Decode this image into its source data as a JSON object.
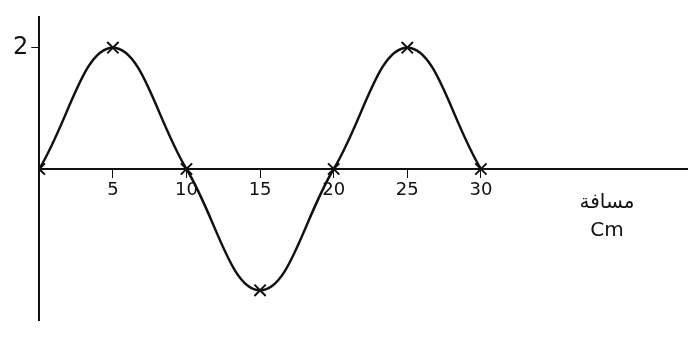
{
  "chart_data": {
    "type": "line",
    "xlabel": "مسافة Cm",
    "x": [
      0,
      5,
      10,
      15,
      20,
      25,
      30
    ],
    "values": [
      0,
      2,
      0,
      -2,
      0,
      2,
      0
    ],
    "color": "#111111",
    "marker": "x",
    "line_style": "smooth",
    "xlim": [
      0,
      44
    ],
    "xticks": [
      5,
      10,
      15,
      20,
      25,
      30
    ],
    "ylim": [
      -2.5,
      2.5
    ],
    "yticks": [
      2
    ],
    "grid": false
  }
}
